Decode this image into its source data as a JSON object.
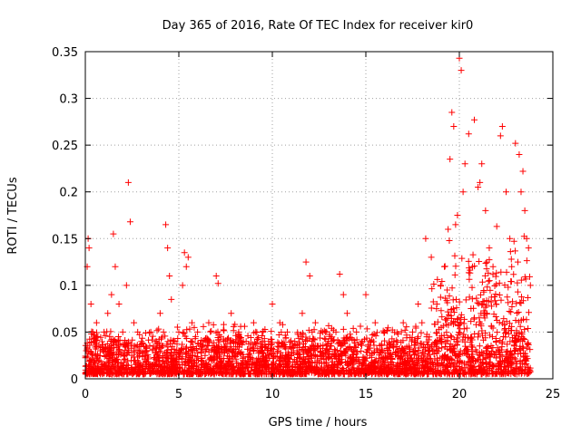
{
  "chart_data": {
    "type": "scatter",
    "title": "Day 365 of 2016, Rate Of TEC Index for receiver kir0",
    "xlabel": "GPS time / hours",
    "ylabel": "ROTI / TECUs",
    "xlim": [
      0,
      25
    ],
    "ylim": [
      0,
      0.35
    ],
    "grid": true,
    "marker": "+",
    "color": "#ff0000",
    "xticks": [
      0,
      5,
      10,
      15,
      20,
      25
    ],
    "xtick_labels": [
      "0",
      "5",
      "10",
      "15",
      "20",
      "25"
    ],
    "yticks": [
      0,
      0.05,
      0.1,
      0.15,
      0.2,
      0.25,
      0.3,
      0.35
    ],
    "ytick_labels": [
      "0",
      "0.05",
      "0.1",
      "0.15",
      "0.2",
      "0.25",
      "0.3",
      "0.35"
    ],
    "series": [
      {
        "name": "ROTI",
        "x": [
          0.05,
          0.1,
          0.15,
          0.2,
          0.3,
          0.4,
          0.5,
          0.6,
          0.8,
          1.0,
          1.2,
          1.4,
          1.5,
          1.6,
          1.8,
          2.0,
          2.2,
          2.3,
          2.4,
          2.6,
          2.8,
          3.0,
          3.2,
          3.5,
          3.8,
          4.0,
          4.3,
          4.4,
          4.5,
          4.6,
          4.8,
          5.0,
          5.2,
          5.3,
          5.4,
          5.5,
          5.7,
          6.0,
          6.3,
          6.6,
          7.0,
          7.1,
          7.4,
          7.8,
          8.2,
          8.6,
          9.0,
          9.5,
          9.8,
          10.0,
          10.4,
          10.8,
          11.2,
          11.6,
          11.8,
          12.0,
          12.3,
          12.7,
          13.0,
          13.4,
          13.6,
          13.8,
          14.0,
          14.5,
          15.0,
          15.5,
          16.0,
          16.5,
          17.0,
          17.5,
          17.8,
          18.0,
          18.2,
          18.5,
          18.8,
          19.0,
          19.2,
          19.4,
          19.5,
          19.6,
          19.7,
          19.8,
          19.9,
          20.0,
          20.1,
          20.2,
          20.3,
          20.5,
          20.7,
          20.8,
          21.0,
          21.1,
          21.2,
          21.4,
          21.6,
          21.8,
          22.0,
          22.2,
          22.3,
          22.5,
          22.7,
          22.8,
          23.0,
          23.2,
          23.3,
          23.4,
          23.5,
          23.6,
          23.7,
          23.8
        ],
        "y": [
          0.03,
          0.12,
          0.15,
          0.14,
          0.08,
          0.05,
          0.04,
          0.06,
          0.03,
          0.05,
          0.07,
          0.09,
          0.155,
          0.12,
          0.08,
          0.05,
          0.1,
          0.21,
          0.168,
          0.06,
          0.05,
          0.04,
          0.03,
          0.05,
          0.04,
          0.07,
          0.165,
          0.14,
          0.11,
          0.085,
          0.04,
          0.05,
          0.1,
          0.135,
          0.12,
          0.13,
          0.06,
          0.05,
          0.04,
          0.06,
          0.11,
          0.102,
          0.04,
          0.07,
          0.05,
          0.04,
          0.06,
          0.05,
          0.04,
          0.08,
          0.06,
          0.05,
          0.04,
          0.07,
          0.125,
          0.11,
          0.06,
          0.05,
          0.04,
          0.05,
          0.112,
          0.09,
          0.07,
          0.05,
          0.09,
          0.06,
          0.05,
          0.04,
          0.06,
          0.05,
          0.08,
          0.06,
          0.15,
          0.13,
          0.08,
          0.1,
          0.12,
          0.16,
          0.235,
          0.285,
          0.27,
          0.165,
          0.175,
          0.343,
          0.33,
          0.2,
          0.23,
          0.262,
          0.12,
          0.277,
          0.205,
          0.21,
          0.23,
          0.18,
          0.14,
          0.12,
          0.163,
          0.26,
          0.27,
          0.2,
          0.15,
          0.12,
          0.252,
          0.24,
          0.2,
          0.222,
          0.18,
          0.15,
          0.14,
          0.1
        ]
      }
    ]
  }
}
